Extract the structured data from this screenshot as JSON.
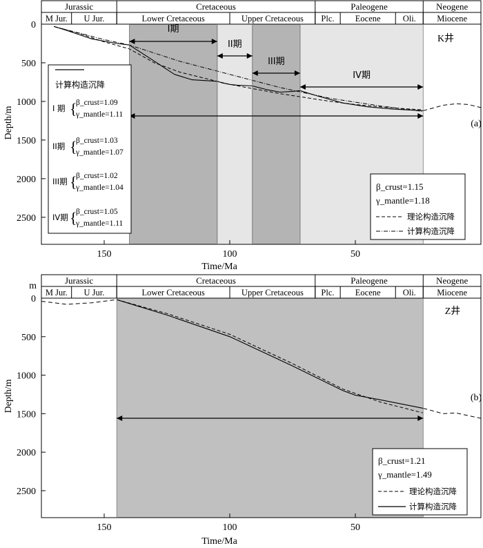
{
  "chart_data": [
    {
      "type": "line",
      "panel_label": "(a)",
      "well_label": "K井",
      "xlabel": "Time/Ma",
      "ylabel": "Depth/m",
      "xlim": [
        175,
        0
      ],
      "ylim": [
        2850,
        0
      ],
      "x_ticks": [
        "150",
        "100",
        "50"
      ],
      "y_ticks": [
        "0",
        "500",
        "1000",
        "1500",
        "2000",
        "2500"
      ],
      "periods": [
        "Jurassic",
        "Cretaceous",
        "Paleogene",
        "Neogene"
      ],
      "epochs": [
        "M Jur.",
        "U Jur.",
        "Lower Cretaceous",
        "Upper Cretaceous",
        "Plc.",
        "Eocene",
        "Oli.",
        "Miocene"
      ],
      "stages": [
        {
          "label": "I期",
          "from_ma": 140,
          "to_ma": 105
        },
        {
          "label": "II期",
          "from_ma": 105,
          "to_ma": 91
        },
        {
          "label": "III期",
          "from_ma": 91,
          "to_ma": 72
        },
        {
          "label": "IV期",
          "from_ma": 72,
          "to_ma": 23
        }
      ],
      "full_span_ma": [
        140,
        23
      ],
      "stage_params_title": "计算构造沉降",
      "stage_params": [
        {
          "stage": "I 期",
          "beta_crust": "β_crust=1.09",
          "gamma_mantle": "γ_mantle=1.11"
        },
        {
          "stage": "II期",
          "beta_crust": "β_crust=1.03",
          "gamma_mantle": "γ_mantle=1.07"
        },
        {
          "stage": "III期",
          "beta_crust": "β_crust=1.02",
          "gamma_mantle": "γ_mantle=1.04"
        },
        {
          "stage": "IV期",
          "beta_crust": "β_crust=1.05",
          "gamma_mantle": "γ_mantle=1.11"
        }
      ],
      "params": {
        "beta_crust": "β_crust=1.15",
        "gamma_mantle": "γ_mantle=1.18"
      },
      "legend": {
        "theoretical": "理论构造沉降",
        "calculated": "计算构造沉降"
      },
      "series": [
        {
          "name": "理论构造沉降 (dashed)",
          "x": [
            170,
            160,
            150,
            140,
            130,
            120,
            110,
            100,
            90,
            80,
            70,
            60,
            50,
            40,
            30,
            23
          ],
          "y": [
            30,
            120,
            230,
            320,
            500,
            620,
            700,
            780,
            840,
            900,
            950,
            1000,
            1040,
            1070,
            1095,
            1110
          ]
        },
        {
          "name": "计算构造沉降 (dash-dot, full)",
          "x": [
            170,
            150,
            140,
            120,
            100,
            80,
            60,
            40,
            23
          ],
          "y": [
            30,
            200,
            270,
            480,
            650,
            820,
            960,
            1060,
            1130
          ]
        },
        {
          "name": "计算构造沉降 (stages, solid)",
          "x": [
            170,
            165,
            155,
            145,
            140,
            130,
            122,
            115,
            105,
            103,
            100,
            97,
            91,
            85,
            80,
            75,
            72,
            65,
            55,
            45,
            35,
            23
          ],
          "y": [
            30,
            80,
            190,
            250,
            270,
            480,
            650,
            720,
            740,
            760,
            780,
            790,
            800,
            850,
            880,
            870,
            860,
            930,
            1020,
            1070,
            1100,
            1120
          ]
        },
        {
          "name": "Neogene extension (dashed)",
          "x": [
            23,
            15,
            10,
            5,
            0
          ],
          "y": [
            1120,
            1050,
            1030,
            1040,
            1080
          ]
        }
      ]
    },
    {
      "type": "line",
      "panel_label": "(b)",
      "well_label": "Z井",
      "unit_label": "m",
      "xlabel": "Time/Ma",
      "ylabel": "Depth/m",
      "xlim": [
        175,
        0
      ],
      "ylim": [
        2850,
        0
      ],
      "x_ticks": [
        "150",
        "100",
        "50"
      ],
      "y_ticks": [
        "0",
        "500",
        "1000",
        "1500",
        "2000",
        "2500"
      ],
      "periods": [
        "Jurassic",
        "Cretaceous",
        "Paleogene",
        "Neogene"
      ],
      "epochs": [
        "M Jur.",
        "U Jur.",
        "Lower Cretaceous",
        "Upper Cretaceous",
        "Plc.",
        "Eocene",
        "Oli.",
        "Miocene"
      ],
      "full_span_ma": [
        145,
        23
      ],
      "params": {
        "beta_crust": "β_crust=1.21",
        "gamma_mantle": "γ_mantle=1.49"
      },
      "legend": {
        "theoretical": "理论构造沉降",
        "calculated": "计算构造沉降"
      },
      "series": [
        {
          "name": "理论构造沉降 (dashed)",
          "x": [
            145,
            125,
            100,
            75,
            55,
            40,
            23
          ],
          "y": [
            20,
            200,
            470,
            850,
            1180,
            1350,
            1490
          ]
        },
        {
          "name": "计算构造沉降 (solid)",
          "x": [
            145,
            125,
            100,
            75,
            55,
            50,
            40,
            23
          ],
          "y": [
            20,
            220,
            500,
            880,
            1200,
            1260,
            1320,
            1430
          ]
        },
        {
          "name": "Jurassic extension (dashed)",
          "x": [
            175,
            165,
            155,
            145
          ],
          "y": [
            40,
            80,
            60,
            20
          ]
        },
        {
          "name": "Neogene extension (dashed)",
          "x": [
            23,
            15,
            10,
            0
          ],
          "y": [
            1430,
            1500,
            1490,
            1560
          ]
        }
      ]
    }
  ]
}
